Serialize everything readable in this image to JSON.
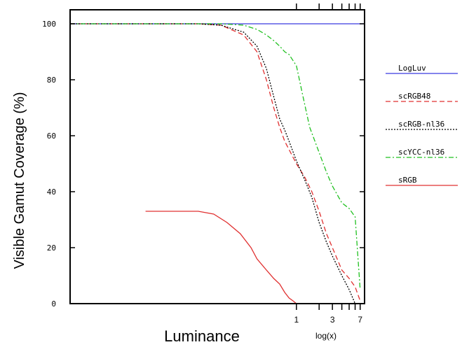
{
  "chart_data": {
    "type": "line",
    "xlabel": "Luminance",
    "x_scale_label": "log(x)",
    "ylabel": "Visible Gamut Coverage (%)",
    "x_scale": "log",
    "xlim": [
      0.001,
      8
    ],
    "ylim": [
      0,
      105
    ],
    "y_ticks": [
      0,
      20,
      40,
      60,
      80,
      100
    ],
    "x_ticks": [
      1,
      2,
      3,
      4,
      5,
      6,
      7
    ],
    "x_tick_labels": [
      {
        "value": 1,
        "label": "1"
      },
      {
        "value": 3,
        "label": "3"
      },
      {
        "value": 7,
        "label": "7"
      }
    ],
    "legend_position": "right",
    "series": [
      {
        "name": "LogLuv",
        "color": "#3a3ae0",
        "dash": "solid",
        "x": [
          0.001,
          8
        ],
        "y": [
          100,
          100
        ]
      },
      {
        "name": "scRGB48",
        "color": "#e03030",
        "dash": "dashed",
        "x": [
          0.001,
          0.05,
          0.1,
          0.2,
          0.3,
          0.4,
          0.5,
          0.6,
          0.7,
          0.8,
          1,
          1.3,
          1.6,
          2,
          2.5,
          3,
          4,
          5,
          6,
          7
        ],
        "y": [
          100,
          100,
          99.5,
          96,
          90,
          80,
          70,
          63,
          58,
          55,
          50,
          45,
          40,
          33,
          25,
          20,
          12,
          9,
          6,
          1
        ]
      },
      {
        "name": "scRGB-nl36",
        "color": "#000000",
        "dash": "dotted",
        "x": [
          0.001,
          0.05,
          0.1,
          0.2,
          0.3,
          0.4,
          0.5,
          0.6,
          0.7,
          0.8,
          1,
          1.3,
          1.6,
          2,
          2.5,
          3,
          4,
          5,
          6
        ],
        "y": [
          100,
          100,
          99.5,
          97,
          92,
          84,
          74,
          66,
          62,
          58,
          51,
          44,
          38,
          29,
          22,
          17,
          10,
          5,
          0
        ]
      },
      {
        "name": "scYCC-nl36",
        "color": "#20c020",
        "dash": "dashdot",
        "x": [
          0.001,
          0.1,
          0.2,
          0.3,
          0.4,
          0.5,
          0.6,
          0.7,
          0.8,
          1,
          1.2,
          1.5,
          2,
          2.5,
          3,
          4,
          5,
          6,
          7
        ],
        "y": [
          100,
          100,
          99.5,
          98,
          96,
          94,
          92,
          90,
          89,
          85,
          75,
          63,
          54,
          47,
          42,
          36,
          34,
          31,
          5
        ]
      },
      {
        "name": "sRGB",
        "color": "#e03030",
        "dash": "solid",
        "x": [
          0.01,
          0.05,
          0.08,
          0.12,
          0.18,
          0.25,
          0.3,
          0.4,
          0.5,
          0.6,
          0.7,
          0.8,
          0.9,
          1
        ],
        "y": [
          33,
          33,
          32,
          29,
          25,
          20,
          16,
          12,
          9,
          7,
          4,
          2,
          1,
          0
        ]
      }
    ]
  }
}
